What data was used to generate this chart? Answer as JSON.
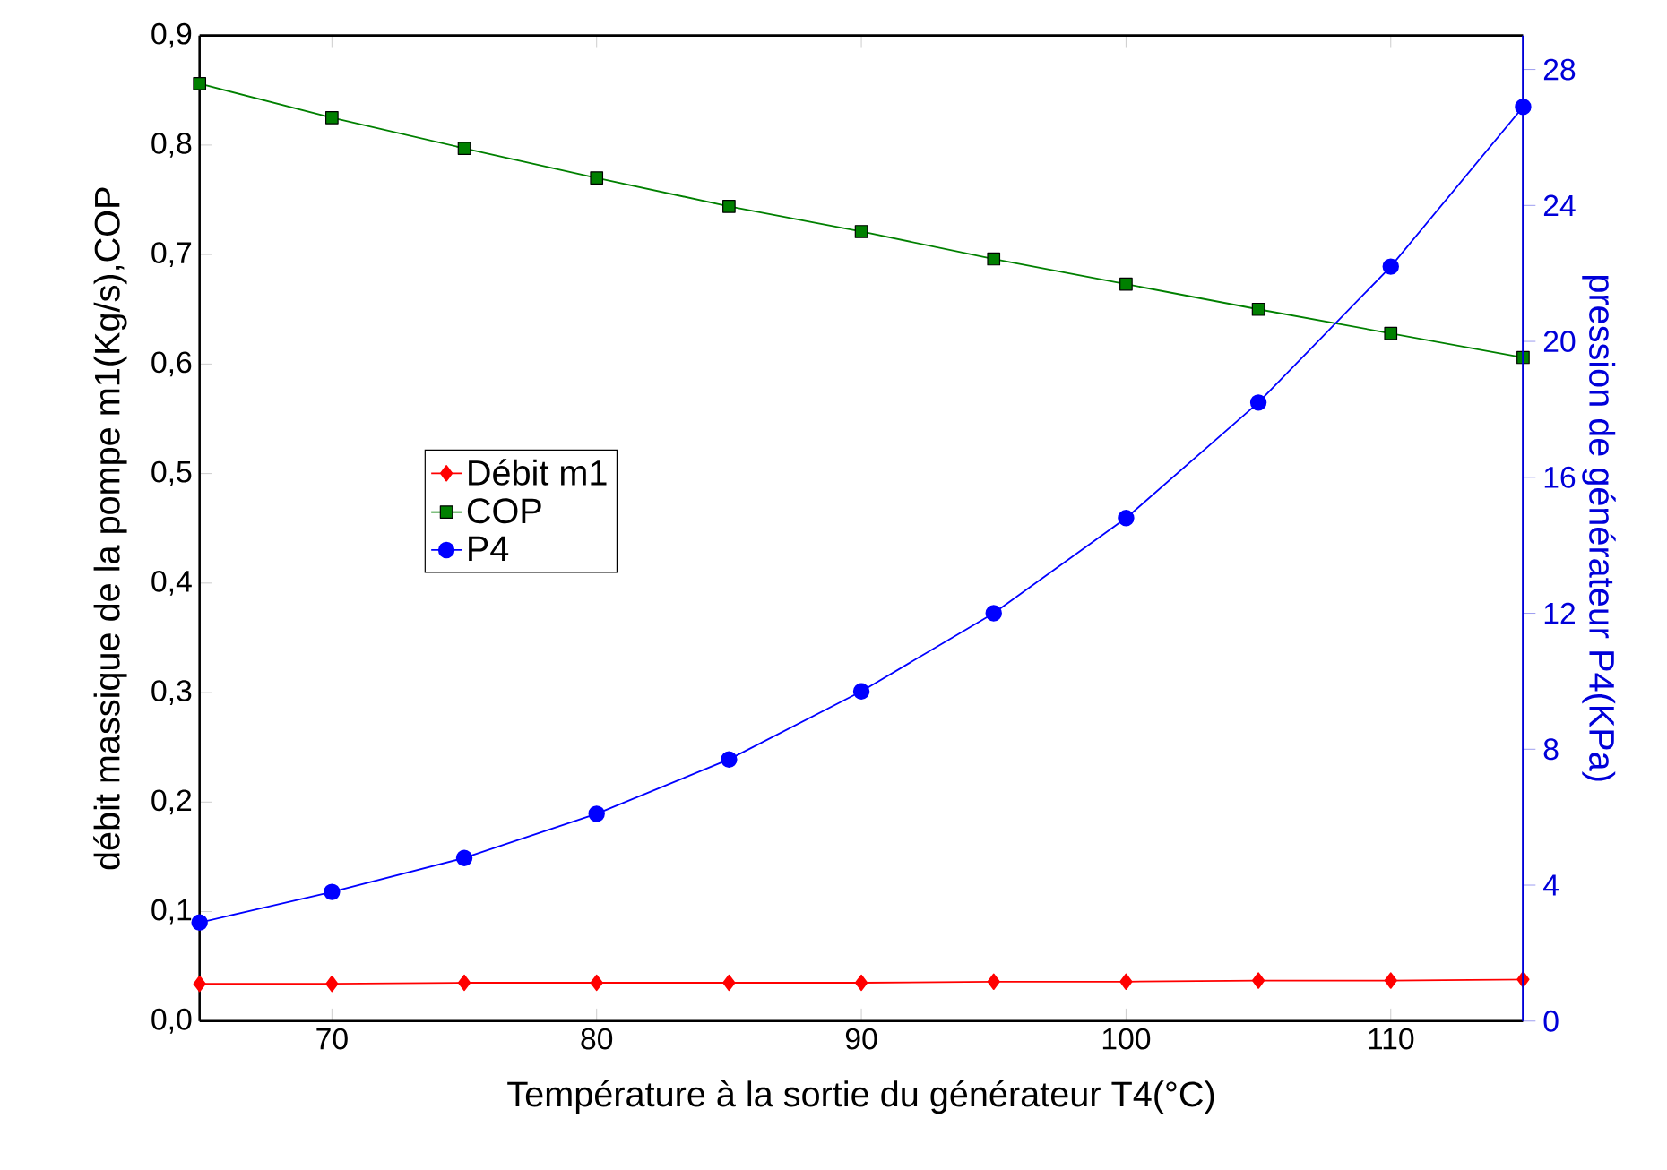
{
  "chart_data": {
    "type": "line",
    "xlabel": "Température à la sortie du générateur T4(°C)",
    "ylabel": "débit massique de la pompe  m1(Kg/s),COP",
    "y2label": "pression de générateur P4(KPa)",
    "x": [
      65,
      70,
      75,
      80,
      85,
      90,
      95,
      100,
      105,
      110,
      115
    ],
    "series": [
      {
        "name": "Débit m1",
        "color": "#ff0000",
        "marker": "diamond",
        "values": [
          0.034,
          0.034,
          0.035,
          0.035,
          0.035,
          0.035,
          0.036,
          0.036,
          0.037,
          0.037,
          0.038
        ]
      },
      {
        "name": "COP",
        "color": "#008000",
        "marker": "square",
        "values": [
          0.856,
          0.825,
          0.797,
          0.77,
          0.744,
          0.721,
          0.696,
          0.673,
          0.65,
          0.628,
          0.606
        ]
      },
      {
        "name": "P4",
        "color": "#0000ff",
        "marker": "circle",
        "axis": "y2",
        "values": [
          2.9,
          3.8,
          4.8,
          6.1,
          7.7,
          9.7,
          12.0,
          14.8,
          18.2,
          22.2,
          26.9
        ]
      }
    ],
    "xlim": [
      65,
      115
    ],
    "xticks": [
      70,
      80,
      90,
      100,
      110
    ],
    "ylim": [
      0,
      0.9
    ],
    "yticks": [
      {
        "value": 0,
        "label": "0,0"
      },
      {
        "value": 0.1,
        "label": "0,1"
      },
      {
        "value": 0.2,
        "label": "0,2"
      },
      {
        "value": 0.3,
        "label": "0,3"
      },
      {
        "value": 0.4,
        "label": "0,4"
      },
      {
        "value": 0.5,
        "label": "0,5"
      },
      {
        "value": 0.6,
        "label": "0,6"
      },
      {
        "value": 0.7,
        "label": "0,7"
      },
      {
        "value": 0.8,
        "label": "0,8"
      },
      {
        "value": 0.9,
        "label": "0,9"
      }
    ],
    "y2lim": [
      0,
      29
    ],
    "y2ticks": [
      0,
      4,
      8,
      12,
      16,
      20,
      24,
      28
    ],
    "legend": "left",
    "grid": false,
    "line_style": "solid"
  }
}
